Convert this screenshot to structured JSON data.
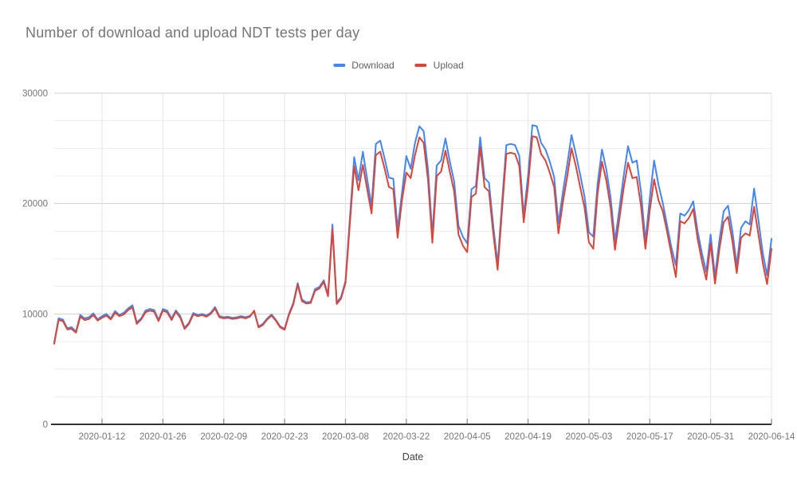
{
  "title": "Number of download and upload NDT tests per day",
  "legend": [
    {
      "label": "Download",
      "color": "#4285f4"
    },
    {
      "label": "Upload",
      "color": "#db4437"
    }
  ],
  "x_axis_title": "Date",
  "y_axis": {
    "tick_labels": [
      "0",
      "10000",
      "20000",
      "30000"
    ],
    "tick_values": [
      0,
      10000,
      20000,
      30000
    ],
    "minor_step": 2500,
    "max": 30000
  },
  "colors": {
    "background": "#ffffff",
    "title_text": "#757575",
    "axis_label_text": "#757575",
    "legend_text": "#616161",
    "axis_line": "#333333",
    "tick_mark": "#80868b",
    "grid_major": "#cfcfcf",
    "grid_minor": "#ececec",
    "grid_vertical": "#e6e6e6"
  },
  "chart_data": {
    "type": "line",
    "title": "Number of download and upload NDT tests per day",
    "xlabel": "Date",
    "ylabel": "",
    "x_start": "2020-01-01",
    "x_end": "2020-06-14",
    "x_frequency": "daily",
    "n_points": 166,
    "ylim": [
      0,
      30000
    ],
    "grid": true,
    "legend_position": "top",
    "x_ticks": [
      {
        "index": 11,
        "label": "2020-01-12"
      },
      {
        "index": 25,
        "label": "2020-01-26"
      },
      {
        "index": 39,
        "label": "2020-02-09"
      },
      {
        "index": 53,
        "label": "2020-02-23"
      },
      {
        "index": 67,
        "label": "2020-03-08"
      },
      {
        "index": 81,
        "label": "2020-03-22"
      },
      {
        "index": 95,
        "label": "2020-04-05"
      },
      {
        "index": 109,
        "label": "2020-04-19"
      },
      {
        "index": 123,
        "label": "2020-05-03"
      },
      {
        "index": 137,
        "label": "2020-05-17"
      },
      {
        "index": 151,
        "label": "2020-05-31"
      },
      {
        "index": 165,
        "label": "2020-06-14"
      }
    ],
    "series": [
      {
        "name": "Download",
        "color": "#4285f4",
        "values": [
          7400,
          9600,
          9500,
          8700,
          8800,
          8400,
          9900,
          9600,
          9700,
          10050,
          9500,
          9800,
          10000,
          9600,
          10260,
          9900,
          10100,
          10500,
          10790,
          9230,
          9600,
          10300,
          10450,
          10350,
          9470,
          10440,
          10300,
          9590,
          10320,
          9800,
          8750,
          9200,
          10080,
          9900,
          10000,
          9850,
          10100,
          10620,
          9800,
          9700,
          9750,
          9650,
          9700,
          9800,
          9700,
          9830,
          10190,
          8870,
          9100,
          9590,
          9950,
          9470,
          8870,
          8650,
          10000,
          11000,
          12800,
          11300,
          11050,
          11100,
          12260,
          12450,
          13050,
          11760,
          18100,
          11050,
          11540,
          13000,
          18600,
          24200,
          22100,
          24700,
          22200,
          19800,
          25400,
          25700,
          24100,
          22350,
          22250,
          17700,
          21000,
          24300,
          23150,
          25500,
          27000,
          26550,
          23050,
          17150,
          23450,
          23900,
          25900,
          23800,
          22000,
          18000,
          17000,
          16400,
          21300,
          21600,
          26000,
          22300,
          21900,
          18000,
          14500,
          20000,
          25300,
          25400,
          25300,
          24300,
          18900,
          22500,
          27100,
          27000,
          25500,
          24900,
          23800,
          22400,
          18200,
          21000,
          23500,
          26200,
          24500,
          22600,
          20600,
          17400,
          17000,
          21800,
          24900,
          23100,
          20500,
          16600,
          19500,
          22500,
          25200,
          23700,
          23900,
          21000,
          16600,
          20500,
          23900,
          21700,
          20050,
          18000,
          16000,
          14400,
          19100,
          18900,
          19400,
          20200,
          17500,
          15500,
          13800,
          17200,
          13400,
          16600,
          19300,
          19800,
          17500,
          14400,
          17800,
          18400,
          18100,
          21350,
          18500,
          15500,
          13500,
          16800
        ]
      },
      {
        "name": "Upload",
        "color": "#db4437",
        "values": [
          7300,
          9450,
          9350,
          8600,
          8650,
          8300,
          9750,
          9450,
          9550,
          9900,
          9400,
          9650,
          9850,
          9500,
          10100,
          9800,
          9950,
          10350,
          10600,
          9100,
          9500,
          10150,
          10300,
          10200,
          9350,
          10300,
          10150,
          9450,
          10200,
          9650,
          8650,
          9100,
          9950,
          9800,
          9900,
          9750,
          10000,
          10500,
          9700,
          9600,
          9650,
          9550,
          9600,
          9700,
          9600,
          9750,
          10300,
          8780,
          9000,
          9500,
          9850,
          9380,
          8780,
          8570,
          9900,
          10850,
          12650,
          11150,
          10950,
          11000,
          12100,
          12300,
          12900,
          11600,
          17700,
          10900,
          11400,
          12800,
          18100,
          23400,
          21200,
          23500,
          21300,
          19100,
          24400,
          24700,
          23200,
          21500,
          21300,
          16900,
          20300,
          22800,
          22300,
          24400,
          26000,
          25500,
          22100,
          16450,
          22500,
          22900,
          24800,
          22900,
          21100,
          17200,
          16200,
          15600,
          20600,
          20900,
          25100,
          21500,
          21100,
          17300,
          14000,
          19300,
          24500,
          24600,
          24500,
          23400,
          18300,
          21600,
          26100,
          26000,
          24500,
          23900,
          22800,
          21500,
          17300,
          20100,
          22400,
          25000,
          23400,
          21500,
          19600,
          16500,
          15900,
          20900,
          23800,
          22100,
          19600,
          15800,
          18600,
          21400,
          23700,
          22300,
          22400,
          19700,
          15900,
          19400,
          22200,
          20300,
          19300,
          17400,
          15400,
          13350,
          18400,
          18200,
          18700,
          19500,
          16800,
          14800,
          13100,
          16400,
          12750,
          15800,
          18300,
          18800,
          16600,
          13700,
          16900,
          17300,
          17100,
          19700,
          17200,
          14600,
          12700,
          15900
        ]
      }
    ]
  }
}
